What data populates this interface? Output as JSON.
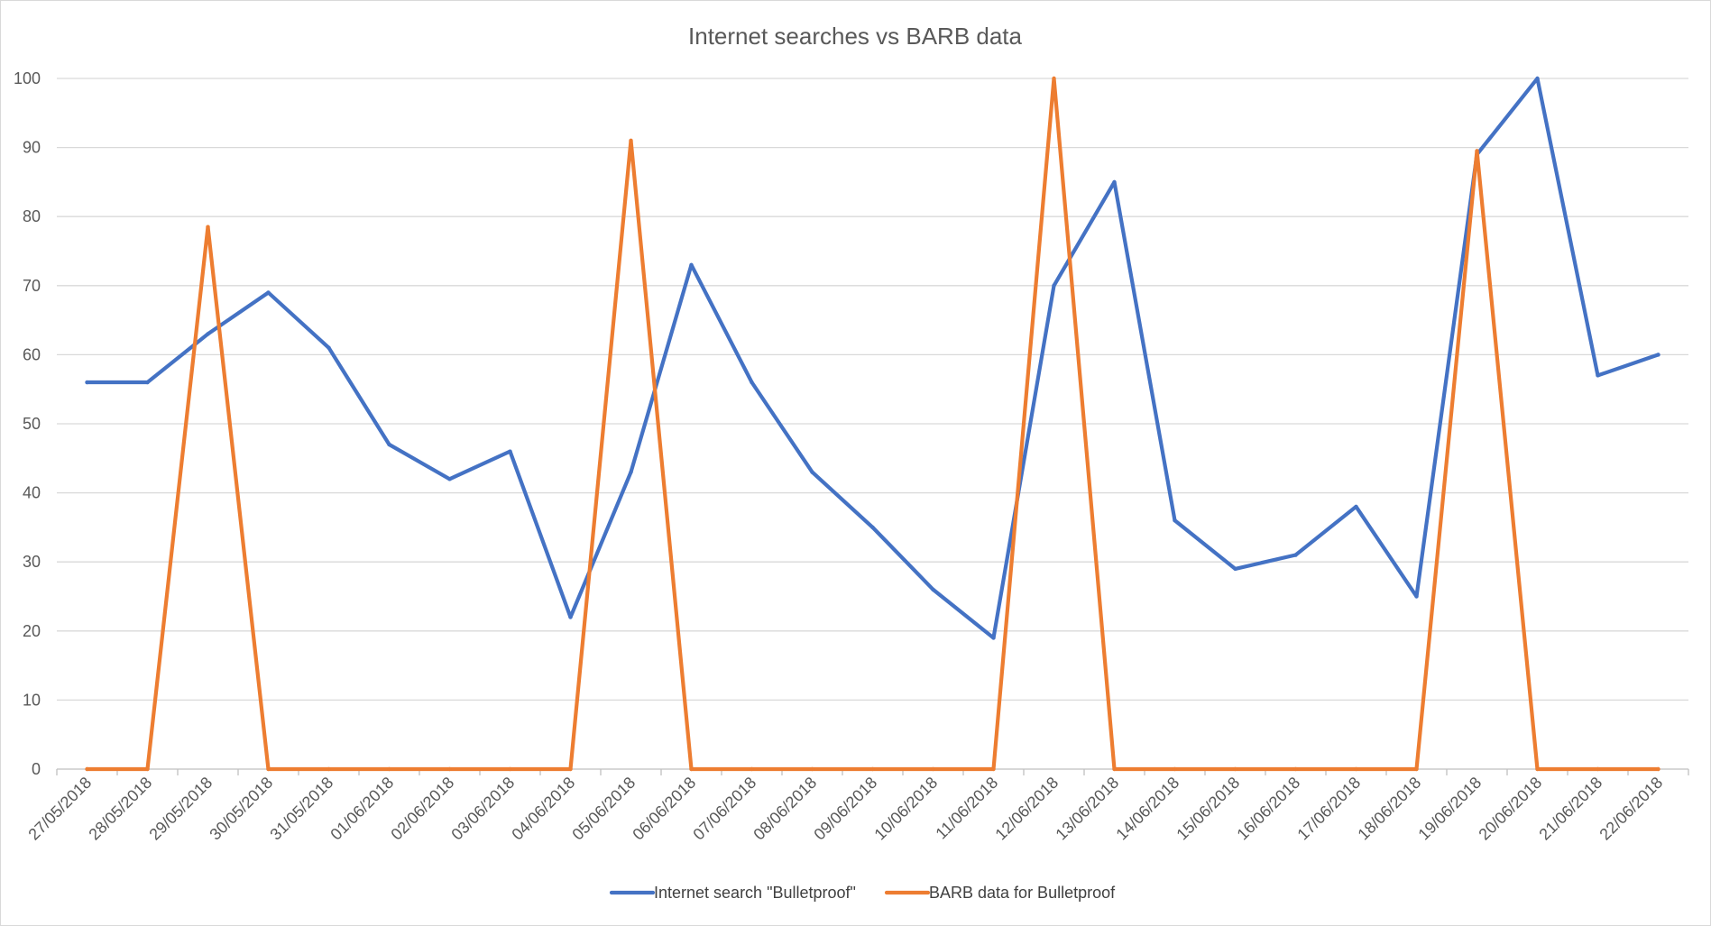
{
  "chart_data": {
    "type": "line",
    "title": "Internet searches vs BARB data",
    "xlabel": "",
    "ylabel": "",
    "ylim": [
      0,
      100
    ],
    "yticks": [
      0,
      10,
      20,
      30,
      40,
      50,
      60,
      70,
      80,
      90,
      100
    ],
    "grid": true,
    "legend_position": "bottom",
    "categories": [
      "27/05/2018",
      "28/05/2018",
      "29/05/2018",
      "30/05/2018",
      "31/05/2018",
      "01/06/2018",
      "02/06/2018",
      "03/06/2018",
      "04/06/2018",
      "05/06/2018",
      "06/06/2018",
      "07/06/2018",
      "08/06/2018",
      "09/06/2018",
      "10/06/2018",
      "11/06/2018",
      "12/06/2018",
      "13/06/2018",
      "14/06/2018",
      "15/06/2018",
      "16/06/2018",
      "17/06/2018",
      "18/06/2018",
      "19/06/2018",
      "20/06/2018",
      "21/06/2018",
      "22/06/2018"
    ],
    "series": [
      {
        "name": "Internet search \"Bulletproof\"",
        "color": "#4472c4",
        "values": [
          56,
          56,
          63,
          69,
          61,
          47,
          42,
          46,
          22,
          43,
          73,
          56,
          43,
          35,
          26,
          19,
          70,
          85,
          36,
          29,
          31,
          38,
          25,
          89,
          100,
          57,
          60
        ]
      },
      {
        "name": "BARB data for Bulletproof",
        "color": "#ed7d31",
        "values": [
          0,
          0,
          78.5,
          0,
          0,
          0,
          0,
          0,
          0,
          91,
          0,
          0,
          0,
          0,
          0,
          0,
          100,
          0,
          0,
          0,
          0,
          0,
          0,
          89.5,
          0,
          0,
          0
        ]
      }
    ]
  }
}
